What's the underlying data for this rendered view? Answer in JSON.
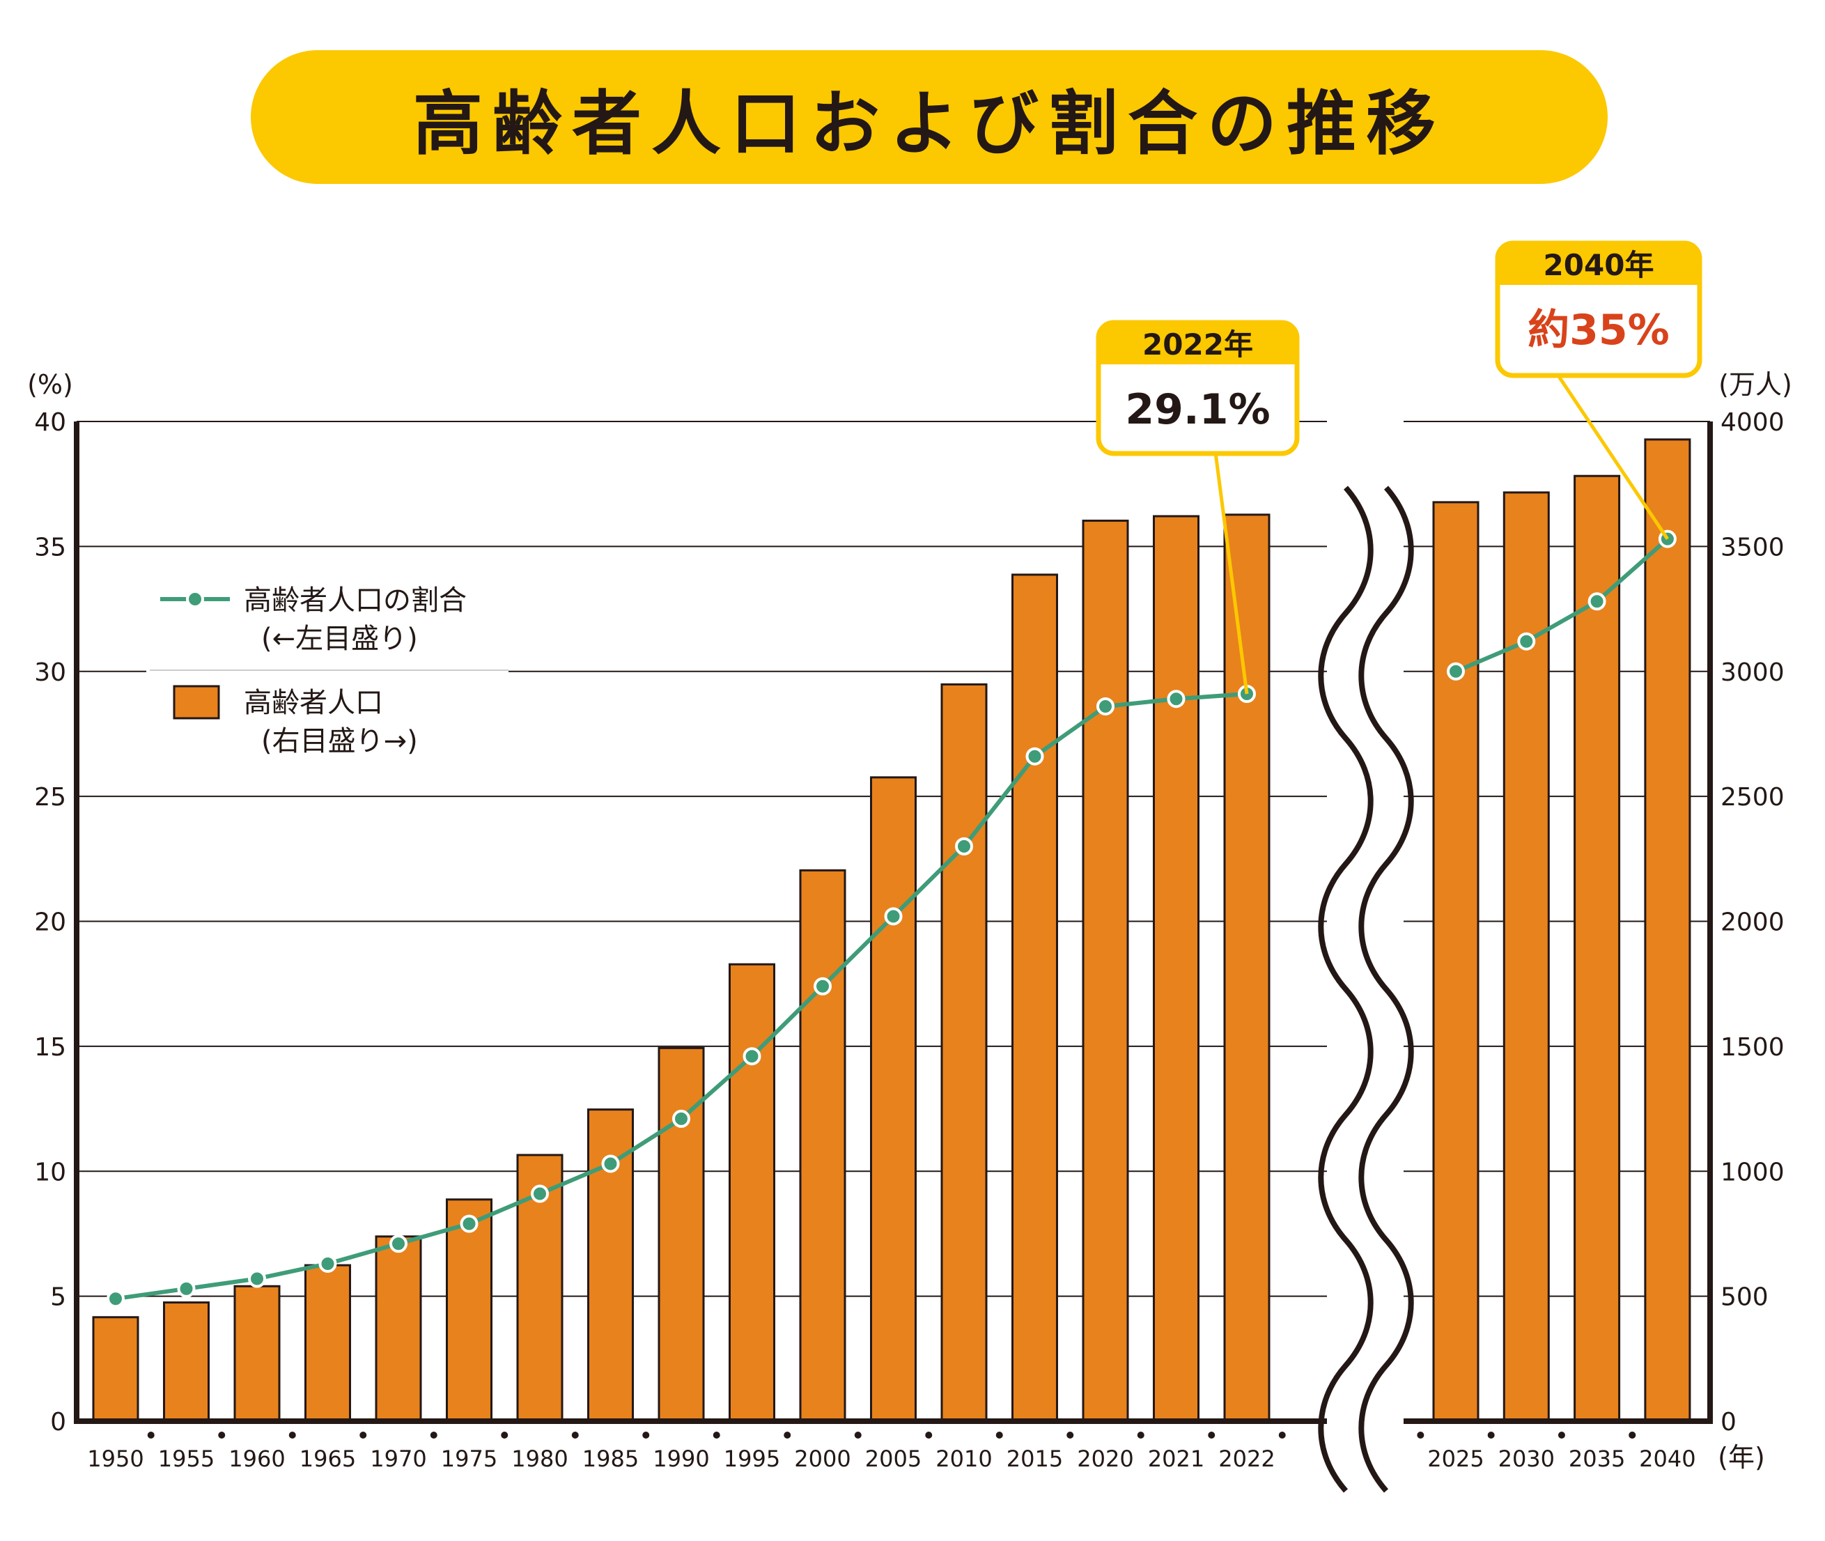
{
  "title": "高齢者人口および割合の推移",
  "colors": {
    "title_bg": "#fcc800",
    "bar_fill": "#e8821d",
    "bar_stroke": "#231815",
    "line": "#3f9c78",
    "callout_border": "#fcc800",
    "callout_highlight": "#d8431b",
    "text": "#231815"
  },
  "chart_data": {
    "type": "bar",
    "categories": [
      "1950",
      "1955",
      "1960",
      "1965",
      "1970",
      "1975",
      "1980",
      "1985",
      "1990",
      "1995",
      "2000",
      "2005",
      "2010",
      "2015",
      "2020",
      "2021",
      "2022",
      "2025",
      "2030",
      "2035",
      "2040"
    ],
    "series": [
      {
        "name": "高齢者人口",
        "type": "bar",
        "axis": "right",
        "values": [
          416,
          475,
          540,
          624,
          739,
          887,
          1065,
          1247,
          1493,
          1828,
          2204,
          2576,
          2948,
          3387,
          3603,
          3621,
          3627,
          3677,
          3716,
          3782,
          3928
        ]
      },
      {
        "name": "高齢者人口の割合",
        "type": "line",
        "axis": "left",
        "values": [
          4.9,
          5.3,
          5.7,
          6.3,
          7.1,
          7.9,
          9.1,
          10.3,
          12.1,
          14.6,
          17.4,
          20.2,
          23.0,
          26.6,
          28.6,
          28.9,
          29.1,
          30.0,
          31.2,
          32.8,
          35.3
        ]
      }
    ],
    "left_axis": {
      "unit": "(%)",
      "ylim": [
        0,
        40
      ],
      "ticks": [
        "0",
        "5",
        "10",
        "15",
        "20",
        "25",
        "30",
        "35",
        "40"
      ]
    },
    "right_axis": {
      "unit": "(万人)",
      "ylim": [
        0,
        4000
      ],
      "ticks": [
        "0",
        "500",
        "1000",
        "1500",
        "2000",
        "2500",
        "3000",
        "3500",
        "4000"
      ]
    },
    "x_unit": "(年)",
    "axis_break_after": "2022",
    "grid": true,
    "legend": {
      "placement": "top-left",
      "items": [
        {
          "label": "高齢者人口の割合",
          "sub": "(←左目盛り)"
        },
        {
          "label": "高齢者人口",
          "sub": "(右目盛り→)"
        }
      ]
    },
    "annotations": [
      {
        "year": "2022年",
        "value": "29.1%",
        "target": "2022"
      },
      {
        "year": "2040年",
        "value": "約35%",
        "target": "2040"
      }
    ]
  }
}
